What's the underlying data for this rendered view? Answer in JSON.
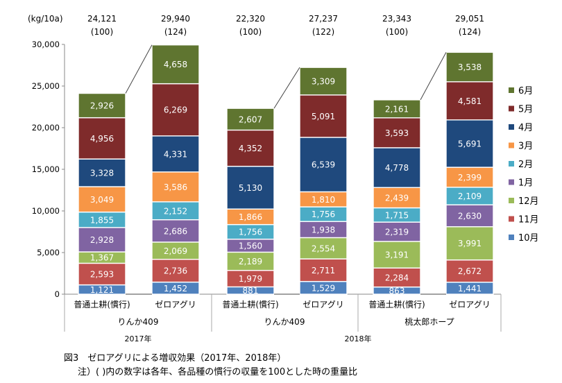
{
  "chart_data": {
    "type": "bar",
    "stacked": true,
    "unit": "(kg/10a)",
    "ylim": [
      0,
      30000
    ],
    "yticks": [
      "0",
      "5,000",
      "10,000",
      "15,000",
      "20,000",
      "25,000",
      "30,000"
    ],
    "ytick_values": [
      0,
      5000,
      10000,
      15000,
      20000,
      25000,
      30000
    ],
    "legend_position": "right",
    "series": [
      {
        "name": "10月",
        "color": "#4f81bd"
      },
      {
        "name": "11月",
        "color": "#c0504d"
      },
      {
        "name": "12月",
        "color": "#9bbb59"
      },
      {
        "name": "1月",
        "color": "#8064a2"
      },
      {
        "name": "2月",
        "color": "#4bacc6"
      },
      {
        "name": "3月",
        "color": "#f79646"
      },
      {
        "name": "4月",
        "color": "#1f497d"
      },
      {
        "name": "5月",
        "color": "#7f2b2b"
      },
      {
        "name": "6月",
        "color": "#5f7530"
      }
    ],
    "bars": [
      {
        "label": "普通土耕(慣行)",
        "total": "24,121",
        "index": "(100)",
        "values": [
          1121,
          2593,
          1367,
          2928,
          1855,
          3049,
          3328,
          4956,
          2926
        ],
        "value_labels": [
          "1,121",
          "2,593",
          "1,367",
          "2,928",
          "1,855",
          "3,049",
          "3,328",
          "4,956",
          "2,926"
        ]
      },
      {
        "label": "ゼロアグリ",
        "total": "29,940",
        "index": "(124)",
        "values": [
          1452,
          2736,
          2069,
          2686,
          2152,
          3586,
          4331,
          6269,
          4658
        ],
        "value_labels": [
          "1,452",
          "2,736",
          "2,069",
          "2,686",
          "2,152",
          "3,586",
          "4,331",
          "6,269",
          "4,658"
        ]
      },
      {
        "label": "普通土耕(慣行)",
        "total": "22,320",
        "index": "(100)",
        "values": [
          881,
          1979,
          2189,
          1560,
          1756,
          1866,
          5130,
          4352,
          2607
        ],
        "value_labels": [
          "881",
          "1,979",
          "2,189",
          "1,560",
          "1,756",
          "1,866",
          "5,130",
          "4,352",
          "2,607"
        ]
      },
      {
        "label": "ゼロアグリ",
        "total": "27,237",
        "index": "(122)",
        "values": [
          1529,
          2711,
          2554,
          1938,
          1756,
          1810,
          6539,
          5091,
          3309
        ],
        "value_labels": [
          "1,529",
          "2,711",
          "2,554",
          "1,938",
          "1,756",
          "1,810",
          "6,539",
          "5,091",
          "3,309"
        ]
      },
      {
        "label": "普通土耕(慣行)",
        "total": "23,343",
        "index": "(100)",
        "values": [
          863,
          2284,
          3191,
          2319,
          1715,
          2439,
          4778,
          3593,
          2161
        ],
        "value_labels": [
          "863",
          "2,284",
          "3,191",
          "2,319",
          "1,715",
          "2,439",
          "4,778",
          "3,593",
          "2,161"
        ]
      },
      {
        "label": "ゼロアグリ",
        "total": "29,051",
        "index": "(124)",
        "values": [
          1441,
          2672,
          3991,
          2630,
          2109,
          2399,
          5691,
          4581,
          3538
        ],
        "value_labels": [
          "1,441",
          "2,672",
          "3,991",
          "2,630",
          "2,109",
          "2,399",
          "5,691",
          "4,581",
          "3,538"
        ]
      }
    ],
    "groups": [
      {
        "variety": "りんか409",
        "year": "2017年"
      },
      {
        "variety": "りんか409",
        "year": "2018年"
      },
      {
        "variety": "桃太郎ホープ",
        "year": ""
      }
    ]
  },
  "caption": {
    "title": "図3　ゼロアグリによる増収効果（2017年、2018年）",
    "note": "注）(  )内の数字は各年、各品種の慣行の収量を100とした時の重量比"
  }
}
